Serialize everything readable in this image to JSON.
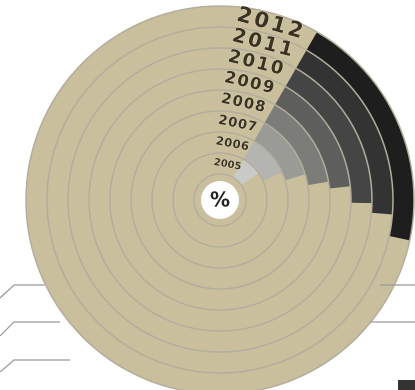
{
  "chart_data": {
    "type": "radial",
    "center_label": "%",
    "series": [
      {
        "name": "2005",
        "color": "#c9c9c6",
        "values": [
          7
        ]
      },
      {
        "name": "2006",
        "color": "#b4b4b0",
        "values": [
          10
        ]
      },
      {
        "name": "2007",
        "color": "#9a9a96",
        "values": [
          12
        ]
      },
      {
        "name": "2008",
        "color": "#7c7c79",
        "values": [
          14
        ]
      },
      {
        "name": "2009",
        "color": "#5e5e5c",
        "values": [
          15
        ]
      },
      {
        "name": "2010",
        "color": "#454545",
        "values": [
          17
        ]
      },
      {
        "name": "2011",
        "color": "#333333",
        "values": [
          18
        ]
      },
      {
        "name": "2012",
        "color": "#1e1e1e",
        "values": [
          20
        ]
      }
    ],
    "background_color": "#c9bf9c"
  }
}
